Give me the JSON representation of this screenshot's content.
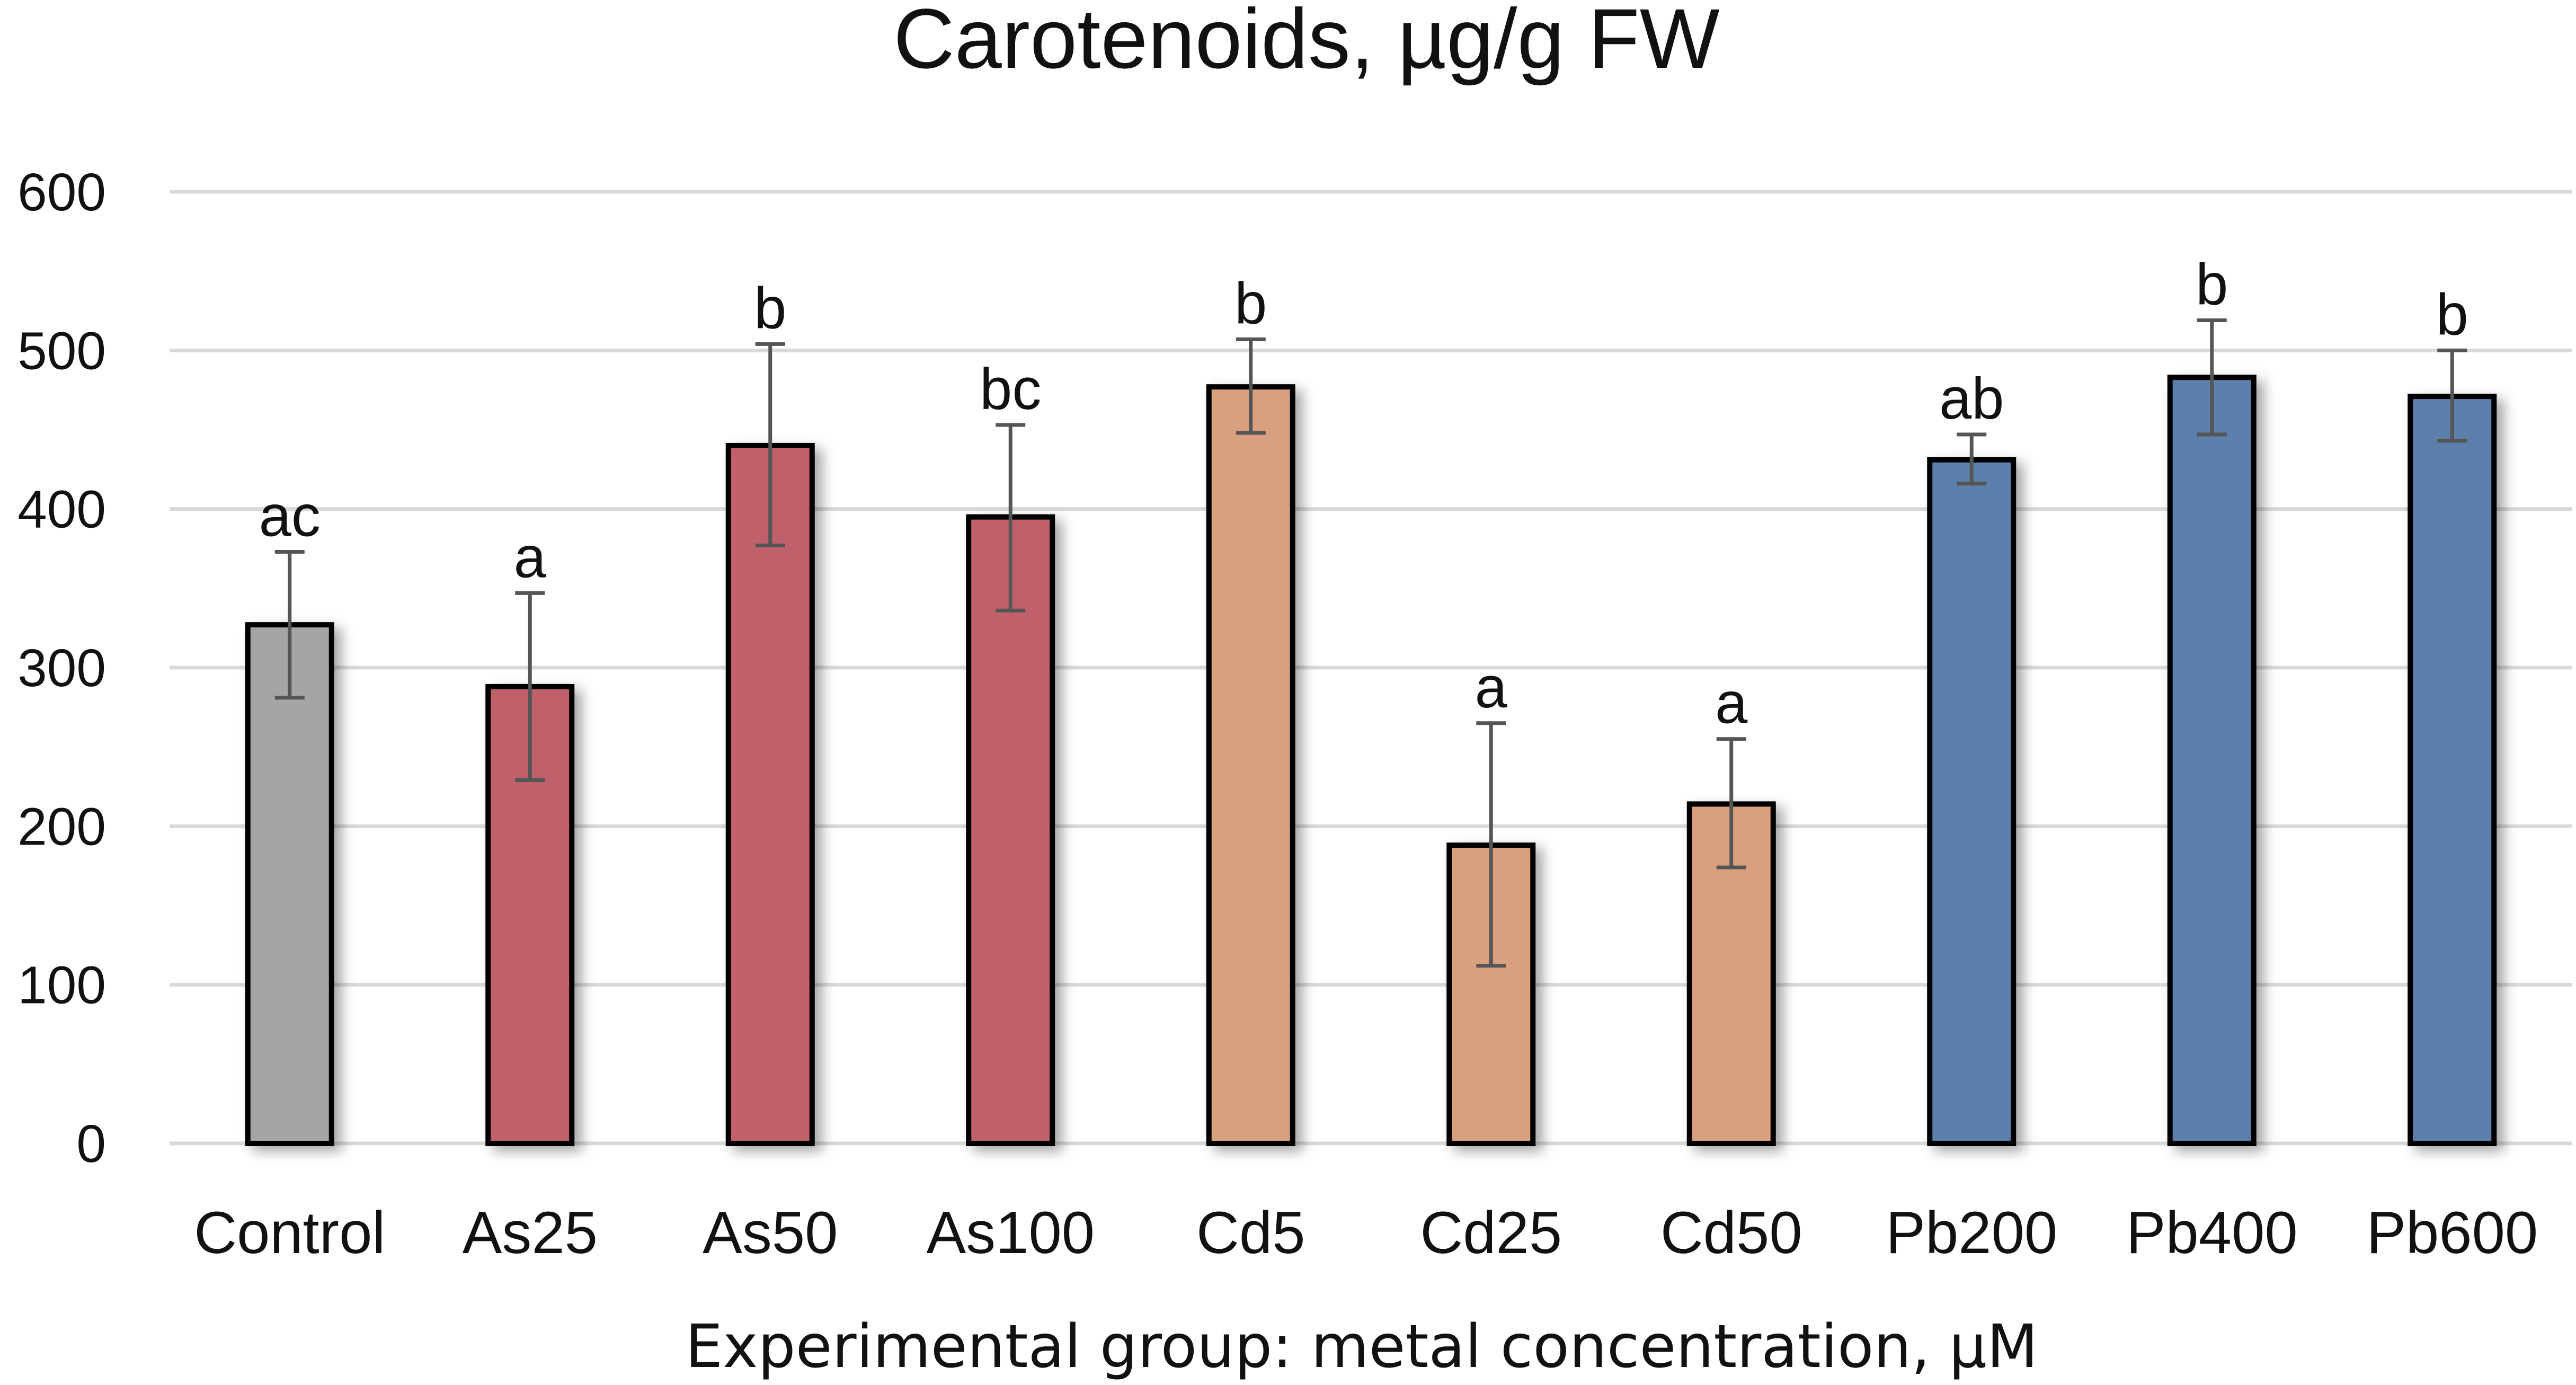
{
  "chart_data": {
    "type": "bar",
    "title": "Carotenoids, µg/g FW",
    "xlabel": "Experimental group: metal concentration, µM",
    "ylabel": "",
    "ylim": [
      0,
      600
    ],
    "yticks": [
      0,
      100,
      200,
      300,
      400,
      500,
      600
    ],
    "grid": true,
    "categories": [
      "Control",
      "As25",
      "As50",
      "As100",
      "Cd5",
      "Cd25",
      "Cd50",
      "Pb200",
      "Pb400",
      "Pb600"
    ],
    "values": [
      327,
      288,
      440,
      395,
      477,
      188,
      214,
      431,
      483,
      471
    ],
    "error_low": [
      281,
      229,
      377,
      336,
      448,
      112,
      174,
      416,
      447,
      443
    ],
    "error_high": [
      373,
      347,
      504,
      453,
      507,
      265,
      255,
      447,
      519,
      500
    ],
    "significance": [
      "ac",
      "a",
      "b",
      "bc",
      "b",
      "a",
      "a",
      "ab",
      "b",
      "b"
    ],
    "colors": [
      "#a5a5a5",
      "#c0606a",
      "#c0606a",
      "#c0606a",
      "#d9a07f",
      "#d9a07f",
      "#d9a07f",
      "#5b80ab",
      "#5b80ab",
      "#5b80ab"
    ]
  }
}
